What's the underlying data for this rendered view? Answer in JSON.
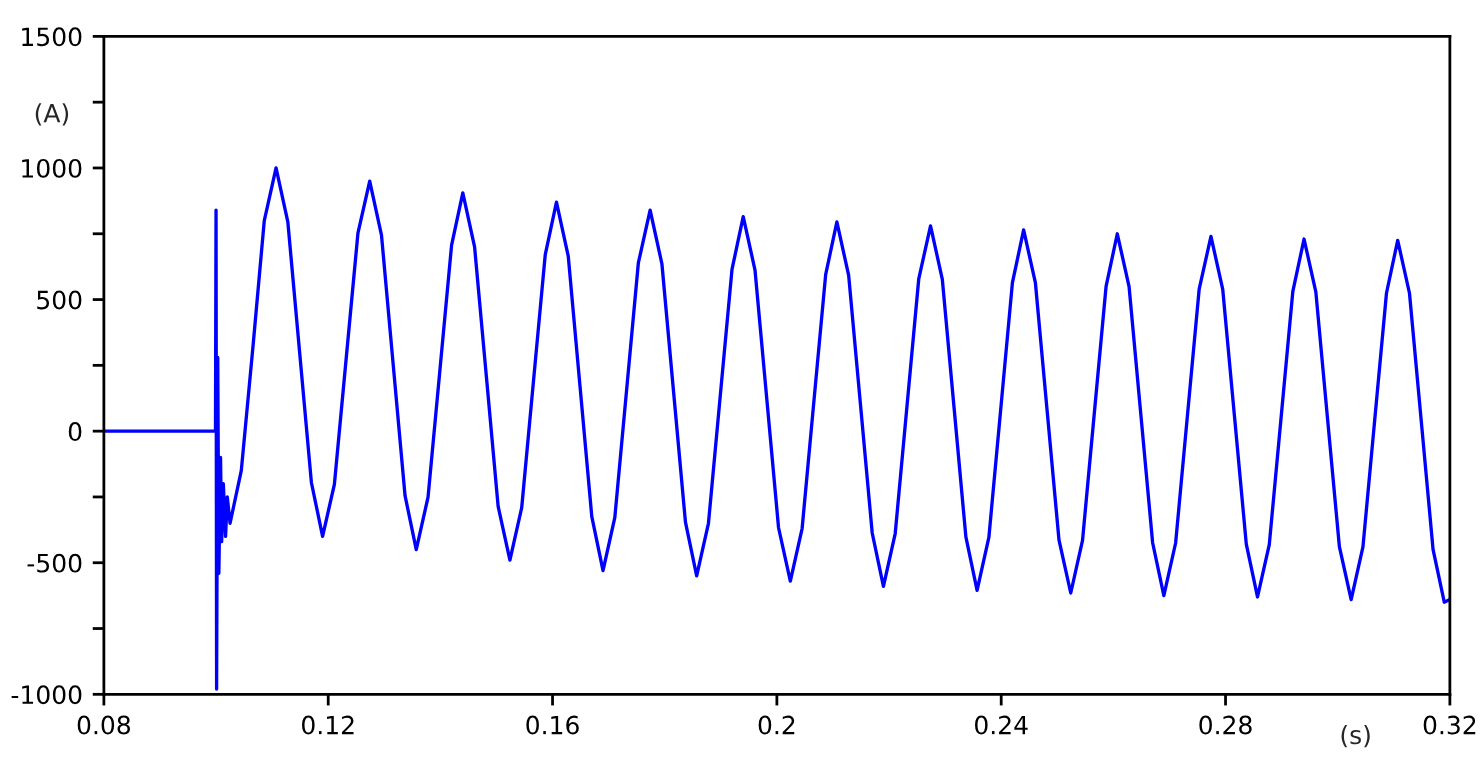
{
  "chart_data": {
    "type": "line",
    "xlabel": "(s)",
    "ylabel": "(A)",
    "xlim": [
      0.08,
      0.32
    ],
    "xticks": [
      0.08,
      0.12,
      0.16,
      0.2,
      0.24,
      0.28,
      0.32
    ],
    "ylim": [
      -1000,
      1500
    ],
    "yticks": [
      -1000,
      {
        "value": -750,
        "label": null
      },
      -500,
      {
        "value": -250,
        "label": null
      },
      0,
      {
        "value": 250,
        "label": null
      },
      500,
      {
        "value": 750,
        "label": null
      },
      1000,
      {
        "value": 1250,
        "label": null
      },
      1500
    ],
    "grid": false,
    "legend": false,
    "marker": "none",
    "line_style": "solid",
    "series": [
      {
        "color": "#0000ff",
        "x": [
          0.08,
          0.0999,
          0.1,
          0.1001,
          0.1003,
          0.1005,
          0.1008,
          0.101,
          0.1013,
          0.1017,
          0.102,
          0.1025,
          0.1045,
          0.1066,
          0.1086,
          0.1107,
          0.1128,
          0.1149,
          0.117,
          0.119,
          0.1211,
          0.1232,
          0.1253,
          0.1274,
          0.1295,
          0.1316,
          0.1337,
          0.1357,
          0.1378,
          0.1399,
          0.142,
          0.144,
          0.1461,
          0.1482,
          0.1503,
          0.1524,
          0.1545,
          0.1566,
          0.1587,
          0.1607,
          0.1628,
          0.1649,
          0.167,
          0.169,
          0.1711,
          0.1732,
          0.1753,
          0.1774,
          0.1795,
          0.1816,
          0.1837,
          0.1857,
          0.1878,
          0.1899,
          0.192,
          0.194,
          0.1961,
          0.1982,
          0.2003,
          0.2024,
          0.2045,
          0.2066,
          0.2087,
          0.2107,
          0.2128,
          0.2149,
          0.217,
          0.219,
          0.2211,
          0.2232,
          0.2253,
          0.2274,
          0.2295,
          0.2316,
          0.2337,
          0.2357,
          0.2378,
          0.2399,
          0.242,
          0.244,
          0.2461,
          0.2482,
          0.2503,
          0.2524,
          0.2545,
          0.2566,
          0.2587,
          0.2607,
          0.2628,
          0.2649,
          0.267,
          0.269,
          0.2711,
          0.2732,
          0.2753,
          0.2774,
          0.2795,
          0.2816,
          0.2837,
          0.2857,
          0.2878,
          0.2899,
          0.292,
          0.294,
          0.2961,
          0.2982,
          0.3003,
          0.3024,
          0.3045,
          0.3066,
          0.3087,
          0.3107,
          0.3128,
          0.3149,
          0.317,
          0.319,
          0.32
        ],
        "values": [
          0,
          0,
          840,
          -980,
          280,
          -540,
          -100,
          -420,
          -200,
          -400,
          -250,
          -350,
          -150,
          325,
          800,
          1000,
          795,
          300,
          -195,
          -400,
          -202,
          275,
          752,
          950,
          745,
          250,
          -245,
          -450,
          -251,
          228,
          707,
          905,
          700,
          208,
          -286,
          -490,
          -291,
          190,
          671,
          870,
          665,
          170,
          -325,
          -530,
          -329,
          155,
          639,
          840,
          636,
          145,
          -346,
          -550,
          -350,
          133,
          615,
          815,
          612,
          123,
          -367,
          -570,
          -370,
          113,
          595,
          795,
          592,
          103,
          -387,
          -590,
          -389,
          95,
          579,
          780,
          577,
          88,
          -402,
          -605,
          -404,
          80,
          564,
          765,
          563,
          75,
          -413,
          -615,
          -415,
          68,
          550,
          750,
          549,
          63,
          -424,
          -625,
          -425,
          58,
          540,
          740,
          539,
          55,
          -429,
          -630,
          -431,
          50,
          531,
          730,
          529,
          45,
          -439,
          -640,
          -440,
          43,
          525,
          725,
          524,
          38,
          -449,
          -650,
          -640
        ]
      }
    ]
  }
}
